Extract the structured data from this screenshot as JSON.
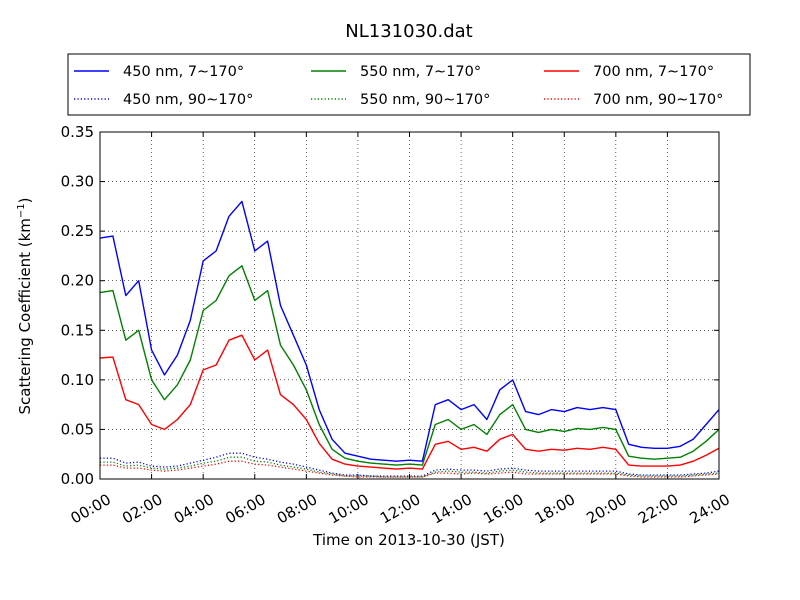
{
  "chart_data": {
    "type": "line",
    "title": "NL131030.dat",
    "xlabel": "Time on 2013-10-30 (JST)",
    "ylabel": "Scattering Coefficient (km",
    "ylabel_sup": "−1",
    "ylabel_close": ")",
    "xlim": [
      0,
      24
    ],
    "ylim": [
      0,
      0.35
    ],
    "grid": true,
    "legend_position": "top",
    "x_ticks": [
      0,
      2,
      4,
      6,
      8,
      10,
      12,
      14,
      16,
      18,
      20,
      22,
      24
    ],
    "x_tick_labels": [
      "00:00",
      "02:00",
      "04:00",
      "06:00",
      "08:00",
      "10:00",
      "12:00",
      "14:00",
      "16:00",
      "18:00",
      "20:00",
      "22:00",
      "24:00"
    ],
    "y_ticks": [
      0,
      0.05,
      0.1,
      0.15,
      0.2,
      0.25,
      0.3,
      0.35
    ],
    "y_tick_labels": [
      "0.00",
      "0.05",
      "0.10",
      "0.15",
      "0.20",
      "0.25",
      "0.30",
      "0.35"
    ],
    "x": [
      0.0,
      0.5,
      1.0,
      1.5,
      2.0,
      2.5,
      3.0,
      3.5,
      4.0,
      4.5,
      5.0,
      5.5,
      6.0,
      6.5,
      7.0,
      7.5,
      8.0,
      8.5,
      9.0,
      9.5,
      10.0,
      10.5,
      11.0,
      11.5,
      12.0,
      12.5,
      13.0,
      13.5,
      14.0,
      14.5,
      15.0,
      15.5,
      16.0,
      16.5,
      17.0,
      17.5,
      18.0,
      18.5,
      19.0,
      19.5,
      20.0,
      20.5,
      21.0,
      21.5,
      22.0,
      22.5,
      23.0,
      23.5,
      24.0
    ],
    "series": [
      {
        "name": "450 nm, 7∼170°",
        "color": "#0000ff",
        "style": "solid",
        "values": [
          0.243,
          0.245,
          0.185,
          0.2,
          0.13,
          0.105,
          0.125,
          0.16,
          0.22,
          0.23,
          0.265,
          0.28,
          0.23,
          0.24,
          0.175,
          0.145,
          0.115,
          0.07,
          0.04,
          0.026,
          0.023,
          0.02,
          0.019,
          0.018,
          0.019,
          0.018,
          0.075,
          0.08,
          0.07,
          0.075,
          0.06,
          0.09,
          0.1,
          0.068,
          0.065,
          0.07,
          0.068,
          0.072,
          0.07,
          0.072,
          0.07,
          0.035,
          0.032,
          0.031,
          0.031,
          0.033,
          0.04,
          0.055,
          0.07
        ]
      },
      {
        "name": "450 nm, 90∼170°",
        "color": "#0000ff",
        "style": "dotted",
        "values": [
          0.021,
          0.021,
          0.016,
          0.017,
          0.013,
          0.012,
          0.013,
          0.016,
          0.019,
          0.022,
          0.026,
          0.026,
          0.022,
          0.02,
          0.017,
          0.015,
          0.012,
          0.009,
          0.006,
          0.004,
          0.004,
          0.003,
          0.003,
          0.003,
          0.003,
          0.003,
          0.009,
          0.01,
          0.009,
          0.009,
          0.008,
          0.01,
          0.011,
          0.009,
          0.008,
          0.008,
          0.008,
          0.008,
          0.008,
          0.008,
          0.008,
          0.005,
          0.004,
          0.004,
          0.004,
          0.004,
          0.005,
          0.006,
          0.008
        ]
      },
      {
        "name": "550 nm, 7∼170°",
        "color": "#008000",
        "style": "solid",
        "values": [
          0.188,
          0.19,
          0.14,
          0.15,
          0.1,
          0.08,
          0.095,
          0.12,
          0.17,
          0.18,
          0.205,
          0.215,
          0.18,
          0.19,
          0.135,
          0.115,
          0.09,
          0.055,
          0.03,
          0.021,
          0.018,
          0.016,
          0.015,
          0.014,
          0.015,
          0.014,
          0.055,
          0.06,
          0.05,
          0.055,
          0.045,
          0.065,
          0.075,
          0.05,
          0.047,
          0.05,
          0.048,
          0.051,
          0.05,
          0.052,
          0.05,
          0.023,
          0.021,
          0.02,
          0.021,
          0.022,
          0.028,
          0.038,
          0.05
        ]
      },
      {
        "name": "550 nm, 90∼170°",
        "color": "#008000",
        "style": "dotted",
        "values": [
          0.017,
          0.017,
          0.013,
          0.014,
          0.011,
          0.01,
          0.011,
          0.013,
          0.016,
          0.018,
          0.022,
          0.022,
          0.018,
          0.017,
          0.014,
          0.012,
          0.01,
          0.007,
          0.005,
          0.003,
          0.003,
          0.003,
          0.002,
          0.002,
          0.002,
          0.002,
          0.007,
          0.008,
          0.007,
          0.007,
          0.006,
          0.008,
          0.009,
          0.007,
          0.006,
          0.006,
          0.006,
          0.006,
          0.006,
          0.006,
          0.006,
          0.004,
          0.003,
          0.003,
          0.003,
          0.003,
          0.004,
          0.005,
          0.006
        ]
      },
      {
        "name": "700 nm, 7∼170°",
        "color": "#ff0000",
        "style": "solid",
        "values": [
          0.122,
          0.123,
          0.08,
          0.075,
          0.055,
          0.05,
          0.06,
          0.075,
          0.11,
          0.115,
          0.14,
          0.145,
          0.12,
          0.13,
          0.085,
          0.075,
          0.06,
          0.036,
          0.02,
          0.015,
          0.013,
          0.012,
          0.011,
          0.01,
          0.011,
          0.01,
          0.035,
          0.038,
          0.03,
          0.032,
          0.028,
          0.04,
          0.045,
          0.03,
          0.028,
          0.03,
          0.029,
          0.031,
          0.03,
          0.032,
          0.03,
          0.014,
          0.013,
          0.013,
          0.013,
          0.014,
          0.018,
          0.024,
          0.031
        ]
      },
      {
        "name": "700 nm, 90∼170°",
        "color": "#ff0000",
        "style": "dotted",
        "values": [
          0.014,
          0.014,
          0.011,
          0.011,
          0.009,
          0.008,
          0.009,
          0.011,
          0.013,
          0.015,
          0.018,
          0.018,
          0.015,
          0.014,
          0.012,
          0.01,
          0.008,
          0.006,
          0.004,
          0.003,
          0.002,
          0.002,
          0.002,
          0.002,
          0.002,
          0.002,
          0.006,
          0.006,
          0.005,
          0.006,
          0.005,
          0.006,
          0.007,
          0.005,
          0.005,
          0.005,
          0.005,
          0.005,
          0.005,
          0.005,
          0.005,
          0.003,
          0.002,
          0.002,
          0.002,
          0.002,
          0.003,
          0.004,
          0.005
        ]
      }
    ]
  }
}
